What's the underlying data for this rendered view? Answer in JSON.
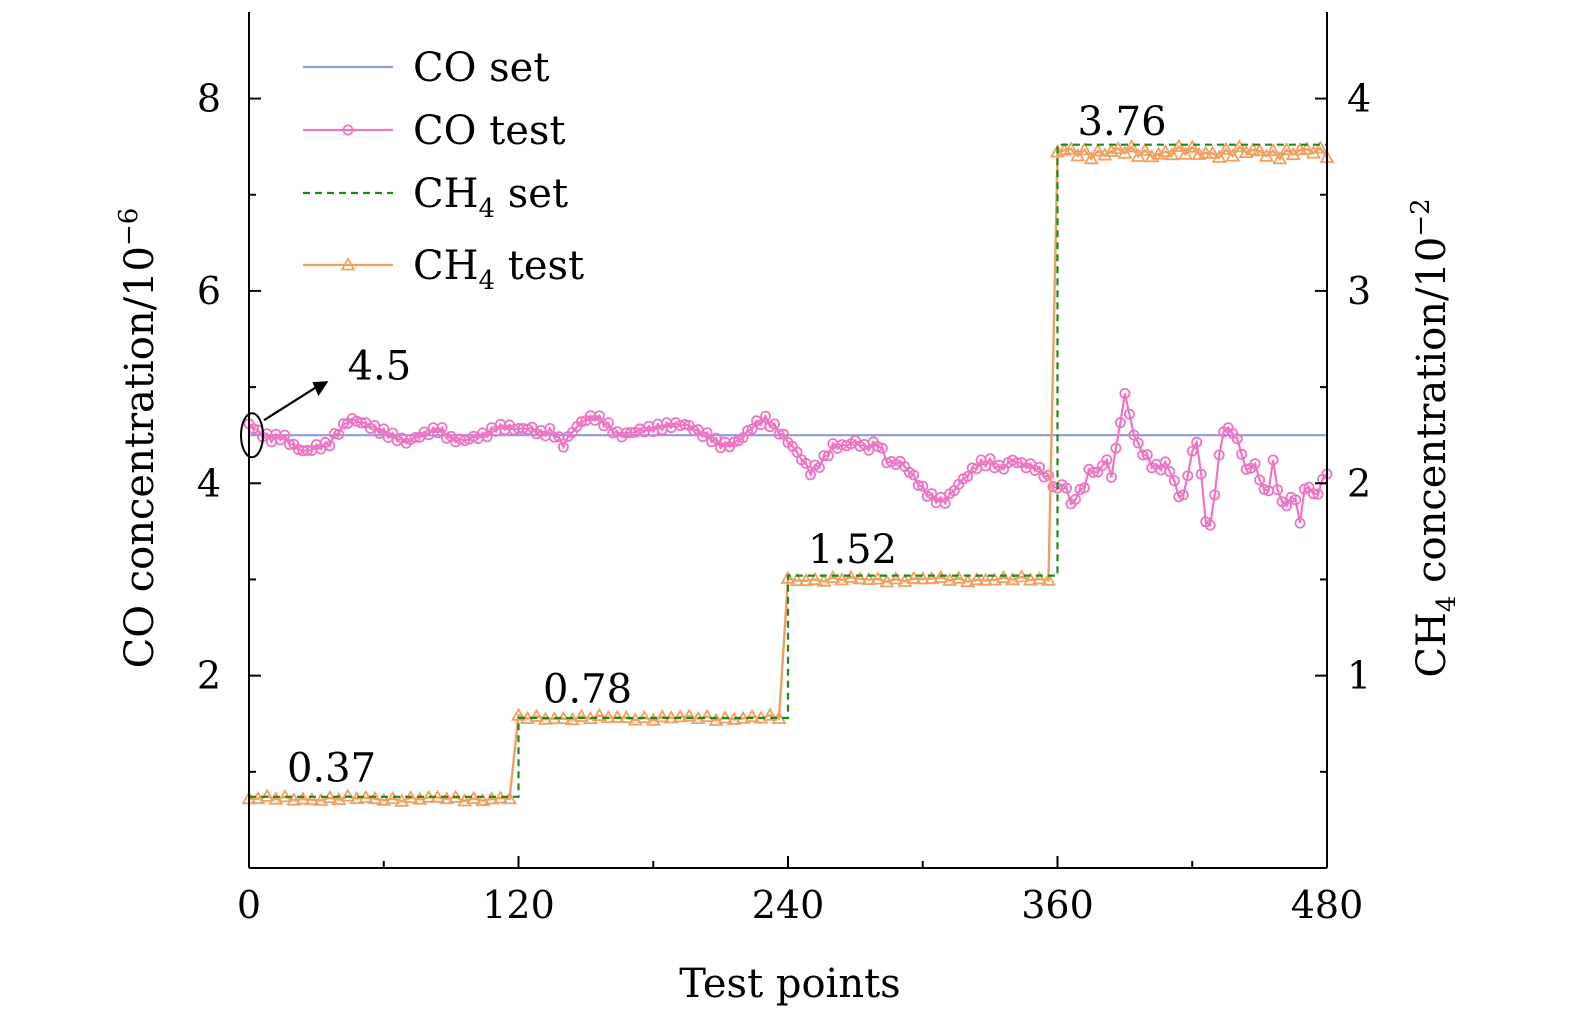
{
  "chart_data": {
    "type": "line",
    "xlabel": "Test points",
    "ylabel_left": "CO concentration/10",
    "ylabel_left_exp": "−6",
    "ylabel_right_pre": "CH",
    "ylabel_right_sub": "4",
    "ylabel_right_post": " concentration/10",
    "ylabel_right_exp": "−2",
    "xlim": [
      0,
      480
    ],
    "ylim_left": [
      0,
      8.9
    ],
    "ylim_right": [
      0,
      4.45
    ],
    "xticks": [
      0,
      120,
      240,
      360,
      480
    ],
    "yticks_left": [
      2,
      4,
      6,
      8
    ],
    "yticks_right": [
      1,
      2,
      3,
      4
    ],
    "legend_position": "top-left",
    "legend": [
      {
        "key": "co_set",
        "label": "CO set",
        "sub": "",
        "after": ""
      },
      {
        "key": "co_test",
        "label": "CO test",
        "sub": "",
        "after": ""
      },
      {
        "key": "ch4_set",
        "label": "CH",
        "sub": "4",
        "after": " set"
      },
      {
        "key": "ch4_test",
        "label": "CH",
        "sub": "4",
        "after": " test"
      }
    ],
    "colors": {
      "co_set": "#8f99e8",
      "co_test": "#ee74c4",
      "ch4_set": "#1e8a1e",
      "ch4_test": "#f0a060"
    },
    "series": [
      {
        "key": "co_set",
        "name": "CO set",
        "axis": "left",
        "x": [
          0,
          480
        ],
        "y": [
          4.5,
          4.5
        ]
      },
      {
        "key": "co_test",
        "name": "CO test",
        "axis": "left",
        "anchors": [
          [
            0,
            4.6
          ],
          [
            5,
            4.5
          ],
          [
            10,
            4.45
          ],
          [
            15,
            4.48
          ],
          [
            20,
            4.38
          ],
          [
            25,
            4.32
          ],
          [
            30,
            4.38
          ],
          [
            35,
            4.4
          ],
          [
            40,
            4.55
          ],
          [
            45,
            4.68
          ],
          [
            50,
            4.65
          ],
          [
            55,
            4.6
          ],
          [
            60,
            4.55
          ],
          [
            65,
            4.5
          ],
          [
            70,
            4.45
          ],
          [
            75,
            4.5
          ],
          [
            80,
            4.55
          ],
          [
            85,
            4.58
          ],
          [
            90,
            4.47
          ],
          [
            95,
            4.45
          ],
          [
            100,
            4.48
          ],
          [
            105,
            4.5
          ],
          [
            110,
            4.57
          ],
          [
            115,
            4.58
          ],
          [
            120,
            4.55
          ],
          [
            125,
            4.56
          ],
          [
            130,
            4.5
          ],
          [
            135,
            4.52
          ],
          [
            140,
            4.38
          ],
          [
            145,
            4.55
          ],
          [
            150,
            4.65
          ],
          [
            155,
            4.67
          ],
          [
            160,
            4.58
          ],
          [
            165,
            4.48
          ],
          [
            170,
            4.52
          ],
          [
            175,
            4.55
          ],
          [
            180,
            4.57
          ],
          [
            185,
            4.6
          ],
          [
            190,
            4.62
          ],
          [
            195,
            4.62
          ],
          [
            200,
            4.55
          ],
          [
            205,
            4.5
          ],
          [
            210,
            4.42
          ],
          [
            215,
            4.42
          ],
          [
            220,
            4.5
          ],
          [
            225,
            4.63
          ],
          [
            230,
            4.68
          ],
          [
            235,
            4.58
          ],
          [
            240,
            4.45
          ],
          [
            245,
            4.3
          ],
          [
            250,
            4.12
          ],
          [
            255,
            4.22
          ],
          [
            260,
            4.38
          ],
          [
            265,
            4.38
          ],
          [
            270,
            4.42
          ],
          [
            275,
            4.35
          ],
          [
            280,
            4.4
          ],
          [
            285,
            4.18
          ],
          [
            290,
            4.2
          ],
          [
            295,
            4.08
          ],
          [
            300,
            3.92
          ],
          [
            305,
            3.82
          ],
          [
            310,
            3.8
          ],
          [
            315,
            3.95
          ],
          [
            320,
            4.08
          ],
          [
            325,
            4.2
          ],
          [
            330,
            4.22
          ],
          [
            335,
            4.15
          ],
          [
            340,
            4.25
          ],
          [
            345,
            4.2
          ],
          [
            350,
            4.18
          ],
          [
            355,
            4.1
          ],
          [
            360,
            3.95
          ],
          [
            363,
            4.05
          ],
          [
            366,
            3.8
          ],
          [
            369,
            3.9
          ],
          [
            372,
            4.0
          ],
          [
            375,
            4.2
          ],
          [
            378,
            4.1
          ],
          [
            381,
            4.3
          ],
          [
            384,
            4.1
          ],
          [
            387,
            4.5
          ],
          [
            390,
            4.95
          ],
          [
            393,
            4.6
          ],
          [
            396,
            4.4
          ],
          [
            399,
            4.3
          ],
          [
            402,
            4.2
          ],
          [
            405,
            4.15
          ],
          [
            408,
            4.2
          ],
          [
            411,
            4.1
          ],
          [
            414,
            3.85
          ],
          [
            417,
            3.9
          ],
          [
            420,
            4.35
          ],
          [
            423,
            4.4
          ],
          [
            426,
            3.55
          ],
          [
            429,
            3.6
          ],
          [
            432,
            4.3
          ],
          [
            435,
            4.6
          ],
          [
            438,
            4.5
          ],
          [
            441,
            4.4
          ],
          [
            444,
            4.1
          ],
          [
            447,
            4.2
          ],
          [
            450,
            4.05
          ],
          [
            453,
            3.8
          ],
          [
            456,
            4.2
          ],
          [
            459,
            3.8
          ],
          [
            462,
            3.75
          ],
          [
            465,
            3.9
          ],
          [
            468,
            3.6
          ],
          [
            471,
            4.05
          ],
          [
            474,
            3.85
          ],
          [
            477,
            3.95
          ],
          [
            480,
            4.12
          ]
        ]
      },
      {
        "key": "ch4_set",
        "name": "CH4 set",
        "axis": "right",
        "x": [
          0,
          120,
          120,
          240,
          240,
          360,
          360,
          480
        ],
        "y": [
          0.37,
          0.37,
          0.78,
          0.78,
          1.52,
          1.52,
          3.76,
          3.76
        ]
      },
      {
        "key": "ch4_test",
        "name": "CH4 test",
        "axis": "right",
        "segments": [
          {
            "x0": 0,
            "x1": 120,
            "base": 0.36
          },
          {
            "x0": 120,
            "x1": 240,
            "base": 0.78
          },
          {
            "x0": 240,
            "x1": 360,
            "base": 1.5
          },
          {
            "x0": 360,
            "x1": 480,
            "base": 3.72
          }
        ]
      }
    ],
    "annotations": [
      {
        "text": "0.37",
        "x": 8,
        "y_left": 0.9
      },
      {
        "text": "0.78",
        "x": 122,
        "y_left": 1.72
      },
      {
        "text": "1.52",
        "x": 240,
        "y_left": 3.17
      },
      {
        "text": "3.76",
        "x": 360,
        "y_left": 7.62
      },
      {
        "text": "4.5",
        "x": 35,
        "y_left": 5.08
      }
    ]
  }
}
